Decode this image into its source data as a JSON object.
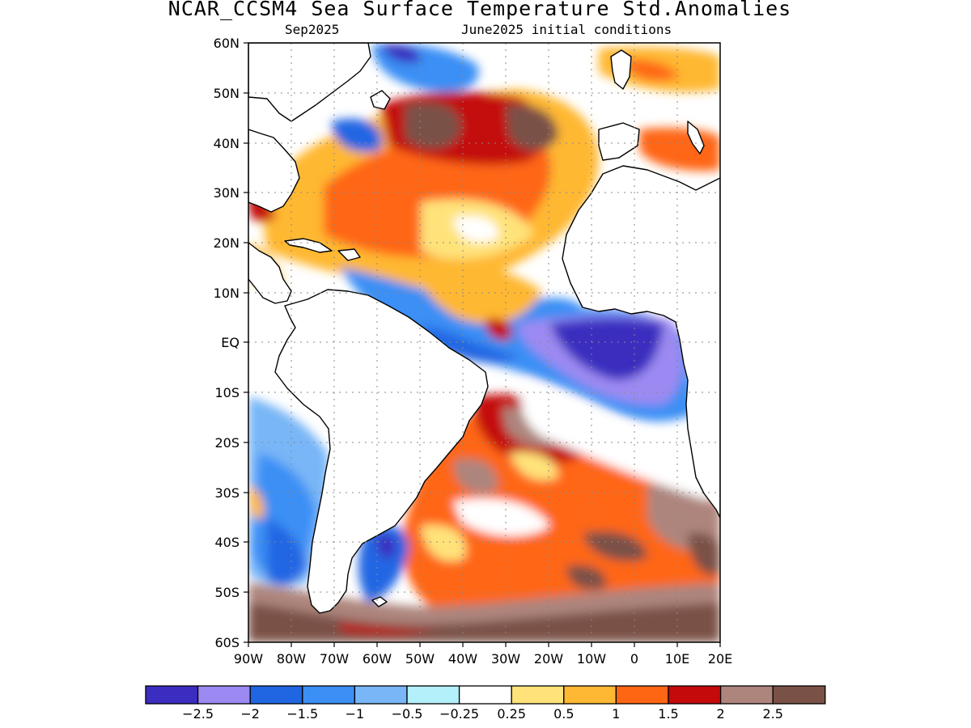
{
  "title": "NCAR_CCSM4 Sea Surface Temperature Std.Anomalies",
  "subtitle_left": "Sep2025",
  "subtitle_right": "June2025 initial conditions",
  "map": {
    "lon_range": [
      -90,
      20
    ],
    "lat_range": [
      -60,
      60
    ],
    "lat_labels": [
      "60N",
      "50N",
      "40N",
      "30N",
      "20N",
      "10N",
      "EQ",
      "10S",
      "20S",
      "30S",
      "40S",
      "50S",
      "60S"
    ],
    "lon_labels": [
      "90W",
      "80W",
      "70W",
      "60W",
      "50W",
      "40W",
      "30W",
      "20W",
      "10W",
      "0",
      "10E",
      "20E"
    ],
    "grid_lines": "dotted"
  },
  "colorbar": {
    "colors": [
      "#3b2dbf",
      "#9c8af2",
      "#2066e3",
      "#3b8ff5",
      "#78b6f7",
      "#b3f0fa",
      "#ffffff",
      "#ffe37a",
      "#ffb833",
      "#ff6614",
      "#c40a0a",
      "#ad857d",
      "#7a5147"
    ],
    "labels": [
      "−2.5",
      "−2",
      "−1.5",
      "−1",
      "−0.5",
      "−0.25",
      "0.25",
      "0.5",
      "1",
      "1.5",
      "2",
      "2.5"
    ]
  }
}
